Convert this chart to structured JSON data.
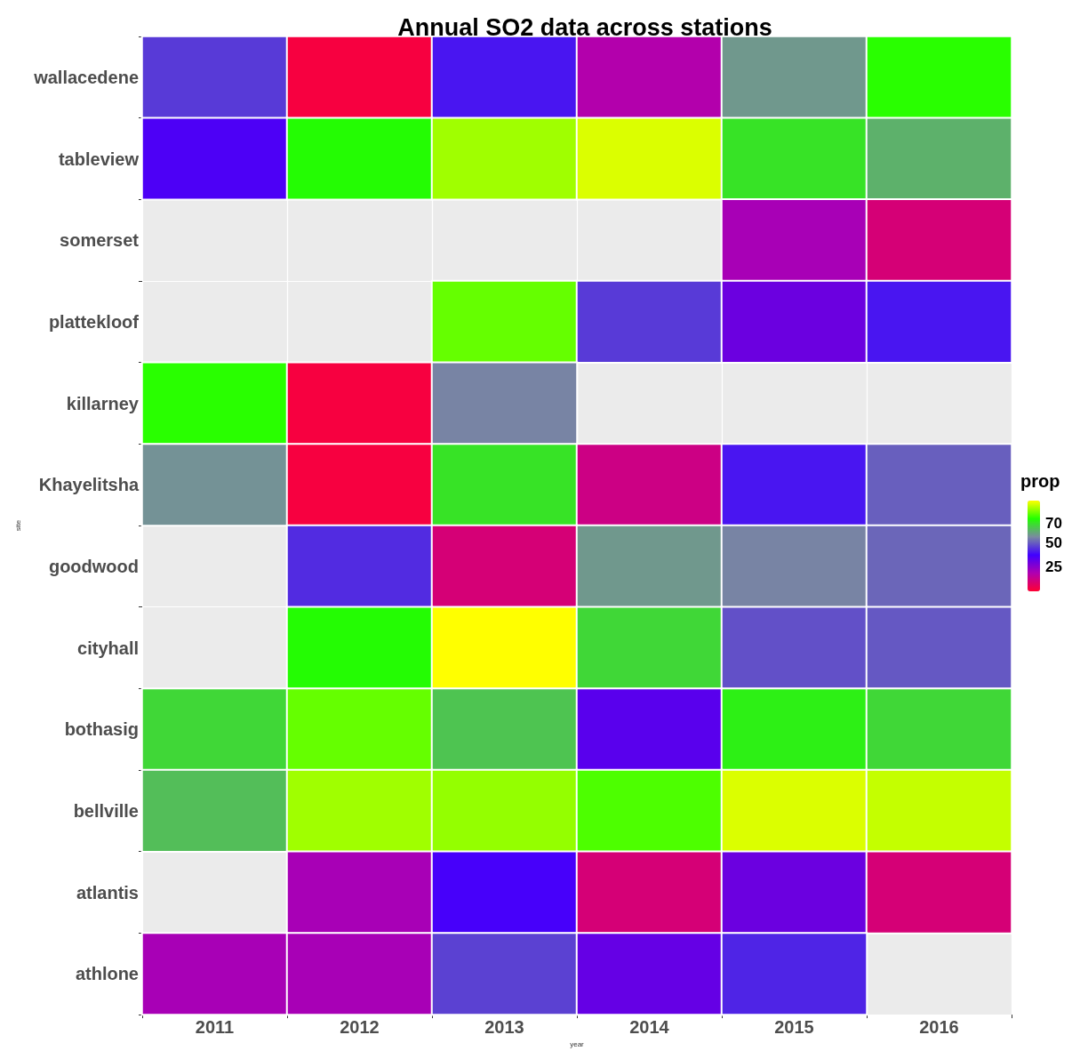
{
  "chart_data": {
    "type": "heatmap",
    "title": "Annual SO2 data across stations",
    "xlabel": "year",
    "ylabel": "site",
    "clabel": "prop",
    "categories": [
      "2011",
      "2012",
      "2013",
      "2014",
      "2015",
      "2016"
    ],
    "y_categories": [
      "wallacedene",
      "tableview",
      "somerset",
      "plattekloof",
      "killarney",
      "Khayelitsha",
      "goodwood",
      "cityhall",
      "bothasig",
      "bellville",
      "atlantis",
      "athlone"
    ],
    "cells": [
      [
        45,
        2,
        40,
        18,
        58,
        75
      ],
      [
        35,
        74,
        85,
        90,
        70,
        62
      ],
      [
        null,
        null,
        null,
        null,
        20,
        10
      ],
      [
        null,
        null,
        80,
        45,
        30,
        40
      ],
      [
        75,
        2,
        55,
        null,
        null,
        null
      ],
      [
        57,
        2,
        70,
        12,
        40,
        50
      ],
      [
        null,
        43,
        10,
        58,
        55,
        51
      ],
      [
        null,
        74,
        93,
        68,
        48,
        49
      ],
      [
        68,
        80,
        65,
        33,
        72,
        68
      ],
      [
        64,
        85,
        84,
        78,
        90,
        88
      ],
      [
        null,
        20,
        36,
        10,
        30,
        10
      ],
      [
        20,
        20,
        46,
        31,
        42,
        null
      ]
    ],
    "clim": [
      0,
      93
    ],
    "cticks": [
      25,
      50,
      70
    ],
    "grid": true
  }
}
